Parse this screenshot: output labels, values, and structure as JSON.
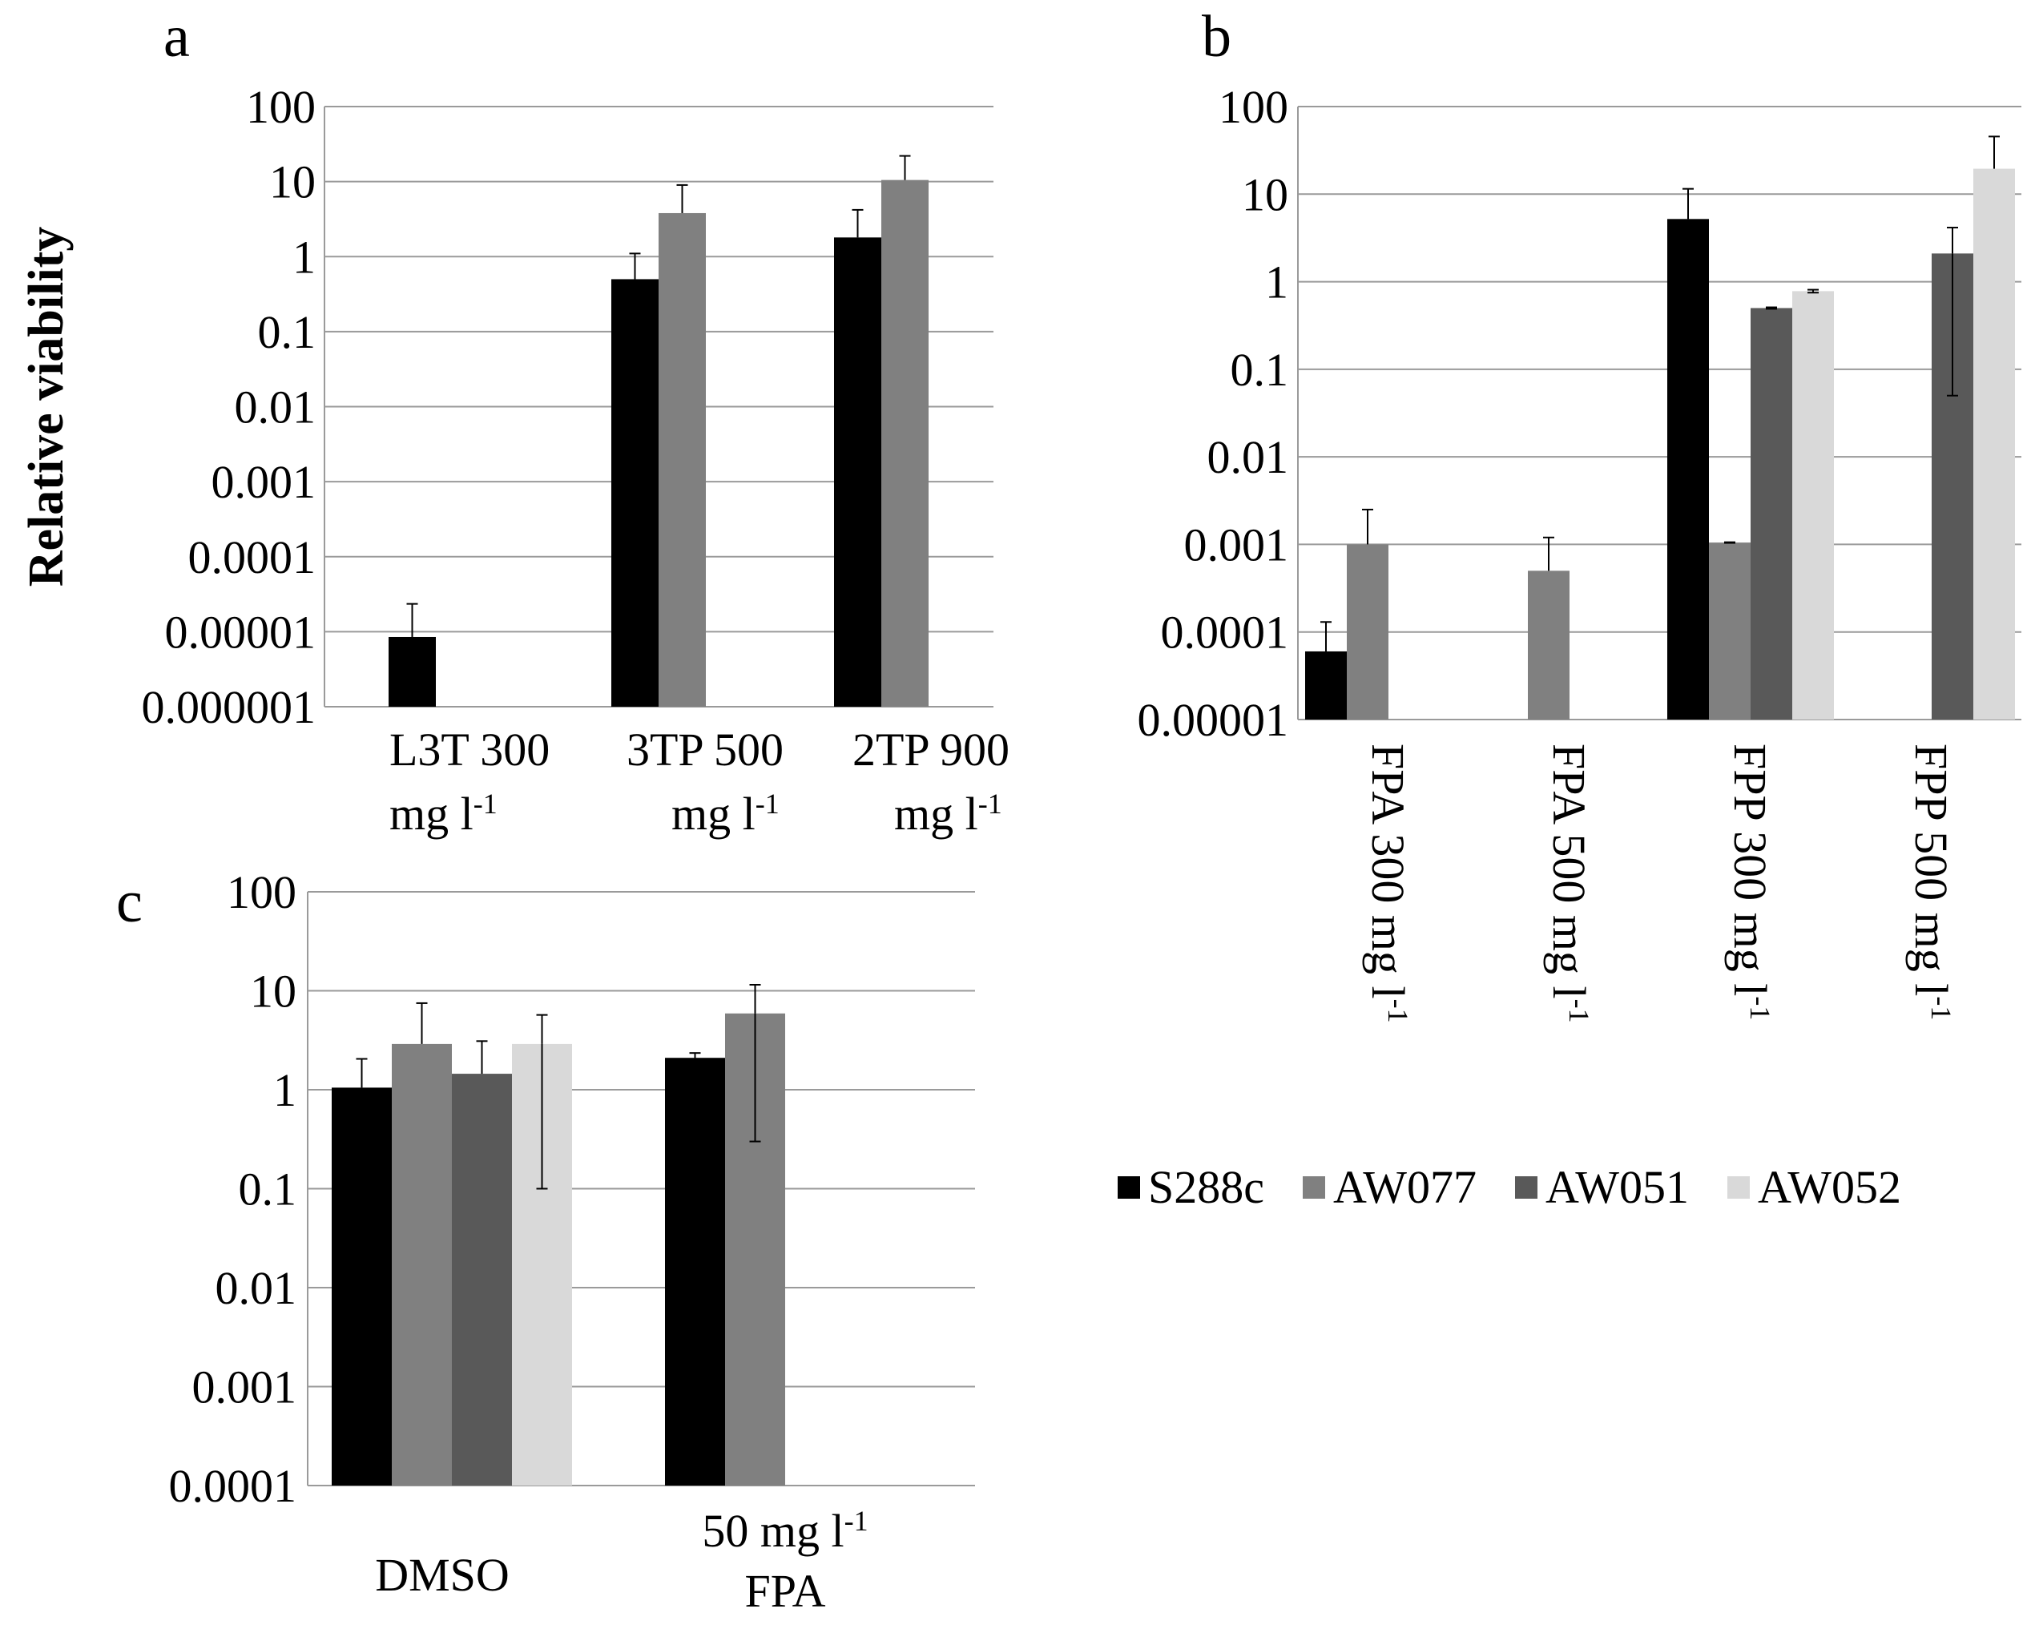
{
  "colors": {
    "S288c": "#000000",
    "AW077": "#808080",
    "AW051": "#595959",
    "AW052": "#d9d9d9",
    "grid": "#9a9a9a",
    "errorbar": "#000000"
  },
  "legend": {
    "items": [
      {
        "name": "S288c",
        "color": "#000000"
      },
      {
        "name": "AW077",
        "color": "#808080"
      },
      {
        "name": "AW051",
        "color": "#595959"
      },
      {
        "name": "AW052",
        "color": "#d9d9d9"
      }
    ]
  },
  "chart_data": [
    {
      "panel": "a",
      "type": "bar",
      "scale": "log",
      "ylabel": "Relative viability",
      "ylim": [
        1e-06,
        100
      ],
      "yticks": [
        "100",
        "10",
        "1",
        "0.1",
        "0.01",
        "0.001",
        "0.0001",
        "0.00001",
        "0.000001"
      ],
      "categories": [
        {
          "line1": "L3T 300",
          "line2": "mg l",
          "sup": "-1"
        },
        {
          "line1": "3TP 500",
          "line2": "mg l",
          "sup": "-1"
        },
        {
          "line1": "2TP 900",
          "line2": "mg l",
          "sup": "-1"
        }
      ],
      "series": [
        {
          "name": "S288c",
          "values": [
            8.5e-06,
            0.5,
            1.8
          ],
          "errors": [
            1.5e-05,
            0.6,
            2.4
          ]
        },
        {
          "name": "AW077",
          "values": [
            null,
            3.8,
            10.5
          ],
          "errors": [
            null,
            5.2,
            11.5
          ]
        }
      ]
    },
    {
      "panel": "b",
      "type": "bar",
      "scale": "log",
      "ylabel": "",
      "ylim": [
        1e-05,
        100
      ],
      "yticks": [
        "100",
        "10",
        "1",
        "0.1",
        "0.01",
        "0.001",
        "0.0001",
        "0.00001"
      ],
      "categories": [
        {
          "line1": "FPA 300 mg l",
          "sup": "-1"
        },
        {
          "line1": "FPA 500 mg l",
          "sup": "-1"
        },
        {
          "line1": "FPP 300 mg l",
          "sup": "-1"
        },
        {
          "line1": "FPP 500 mg l",
          "sup": "-1"
        }
      ],
      "series": [
        {
          "name": "S288c",
          "values": [
            6e-05,
            null,
            5.2,
            null
          ],
          "errors": [
            7e-05,
            null,
            6.3,
            null
          ]
        },
        {
          "name": "AW077",
          "values": [
            0.001,
            0.0005,
            0.00105,
            null
          ],
          "errors": [
            0.0015,
            0.0007,
            1e-05,
            null
          ]
        },
        {
          "name": "AW051",
          "values": [
            null,
            null,
            0.5,
            2.1
          ],
          "errors": [
            null,
            null,
            0.01,
            2.05
          ]
        },
        {
          "name": "AW052",
          "values": [
            null,
            null,
            0.78,
            19.5
          ],
          "errors": [
            null,
            null,
            0.03,
            26
          ]
        }
      ]
    },
    {
      "panel": "c",
      "type": "bar",
      "scale": "log",
      "ylabel": "",
      "ylim": [
        0.0001,
        100
      ],
      "yticks": [
        "100",
        "10",
        "1",
        "0.1",
        "0.01",
        "0.001",
        "0.0001"
      ],
      "categories": [
        {
          "line1": "DMSO"
        },
        {
          "line1": "50 mg l",
          "sup": "-1",
          "line2": "FPA"
        }
      ],
      "series": [
        {
          "name": "S288c",
          "values": [
            1.05,
            2.1
          ],
          "errors": [
            1.0,
            0.25
          ]
        },
        {
          "name": "AW077",
          "values": [
            2.9,
            5.9
          ],
          "errors": [
            4.6,
            5.6
          ]
        },
        {
          "name": "AW051",
          "values": [
            1.45,
            null
          ],
          "errors": [
            1.65,
            null
          ]
        },
        {
          "name": "AW052",
          "values": [
            2.9,
            null
          ],
          "errors": [
            2.8,
            null
          ]
        }
      ]
    }
  ]
}
